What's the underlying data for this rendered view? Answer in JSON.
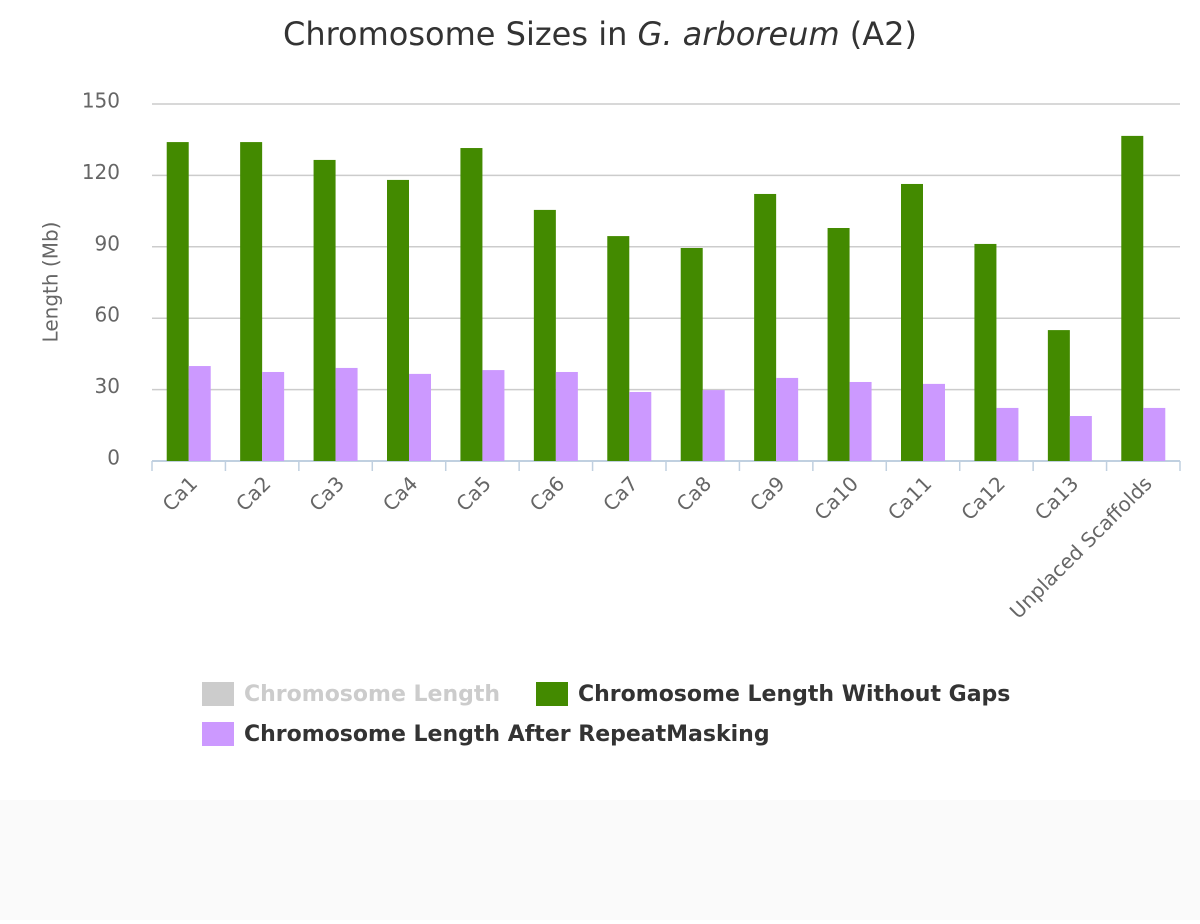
{
  "chart_data": {
    "type": "bar",
    "title_parts": [
      "Chromosome Sizes in ",
      "G. arboreum",
      " (A2)"
    ],
    "y_label": "Length (Mb)",
    "categories": [
      "Ca1",
      "Ca2",
      "Ca3",
      "Ca4",
      "Ca5",
      "Ca6",
      "Ca7",
      "Ca8",
      "Ca9",
      "Ca10",
      "Ca11",
      "Ca12",
      "Ca13",
      "Unplaced Scaffolds"
    ],
    "series": [
      {
        "name": "Chromosome Length",
        "color": "#cccccc",
        "visible": false
      },
      {
        "name": "Chromosome Length Without Gaps",
        "color": "#438a00",
        "values": [
          134.0,
          134.0,
          126.5,
          118.1,
          131.5,
          105.5,
          94.5,
          89.5,
          112.2,
          97.9,
          116.4,
          91.2,
          55.0,
          136.6
        ]
      },
      {
        "name": "Chromosome Length After RepeatMasking",
        "color": "#cc99ff",
        "values": [
          39.9,
          37.4,
          39.1,
          36.6,
          38.2,
          37.4,
          29.0,
          29.8,
          34.9,
          33.2,
          32.4,
          22.3,
          18.9,
          22.3
        ]
      }
    ],
    "ylim": [
      0,
      150
    ],
    "yticks": [
      0,
      30,
      60,
      90,
      120,
      150
    ],
    "grid": true
  }
}
